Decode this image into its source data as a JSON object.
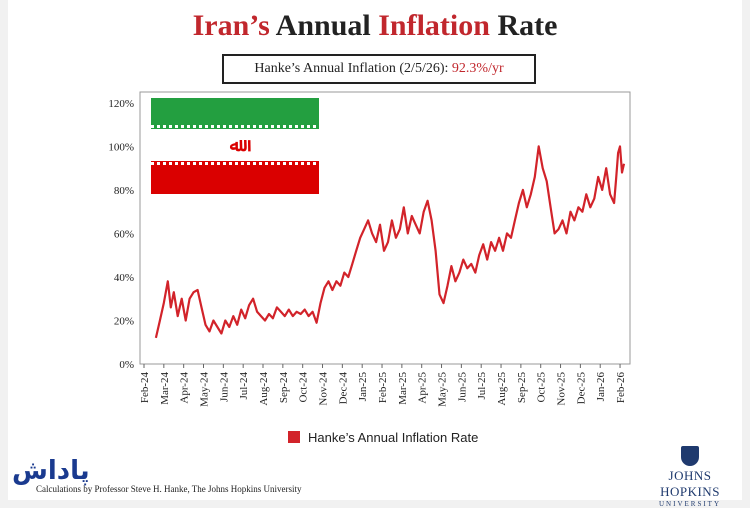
{
  "chart_data": {
    "type": "line",
    "title_parts": [
      {
        "text": "Iran’s",
        "color": "#c1272d"
      },
      {
        "text": "Annual",
        "color": "#222222"
      },
      {
        "text": "Inflation",
        "color": "#c1272d"
      },
      {
        "text": "Rate",
        "color": "#222222"
      }
    ],
    "subtitle_label": "Hanke’s Annual Inflation (2/5/26):",
    "subtitle_value": "92.3%/yr",
    "y_ticks": [
      "0%",
      "20%",
      "40%",
      "60%",
      "80%",
      "100%",
      "120%"
    ],
    "ylim": [
      0,
      125
    ],
    "x_ticks": [
      "Feb-24",
      "Mar-24",
      "Apr-24",
      "May-24",
      "Jun-24",
      "Jul-24",
      "Aug-24",
      "Sep-24",
      "Oct-24",
      "Nov-24",
      "Dec-24",
      "Jan-25",
      "Feb-25",
      "Mar-25",
      "Apr-25",
      "May-25",
      "Jun-25",
      "Jul-25",
      "Aug-25",
      "Sep-25",
      "Oct-25",
      "Nov-25",
      "Dec-25",
      "Jan-26",
      "Feb-26"
    ],
    "xlim": [
      0,
      24.3
    ],
    "series": [
      {
        "name": "Hanke’s Annual Inflation Rate",
        "color": "#d2232a",
        "points": [
          [
            0.6,
            12
          ],
          [
            0.8,
            20
          ],
          [
            1.0,
            28
          ],
          [
            1.2,
            38
          ],
          [
            1.35,
            26
          ],
          [
            1.5,
            33
          ],
          [
            1.7,
            22
          ],
          [
            1.9,
            30
          ],
          [
            2.1,
            20
          ],
          [
            2.3,
            30
          ],
          [
            2.5,
            33
          ],
          [
            2.7,
            34
          ],
          [
            2.9,
            26
          ],
          [
            3.1,
            18
          ],
          [
            3.3,
            15
          ],
          [
            3.5,
            20
          ],
          [
            3.7,
            17
          ],
          [
            3.9,
            14
          ],
          [
            4.1,
            20
          ],
          [
            4.3,
            17
          ],
          [
            4.5,
            22
          ],
          [
            4.7,
            18
          ],
          [
            4.9,
            25
          ],
          [
            5.1,
            21
          ],
          [
            5.3,
            27
          ],
          [
            5.5,
            30
          ],
          [
            5.7,
            24
          ],
          [
            5.9,
            22
          ],
          [
            6.1,
            20
          ],
          [
            6.3,
            23
          ],
          [
            6.5,
            21
          ],
          [
            6.7,
            26
          ],
          [
            6.9,
            24
          ],
          [
            7.1,
            22
          ],
          [
            7.3,
            25
          ],
          [
            7.5,
            22
          ],
          [
            7.7,
            24
          ],
          [
            7.9,
            23
          ],
          [
            8.1,
            25
          ],
          [
            8.3,
            22
          ],
          [
            8.5,
            24
          ],
          [
            8.7,
            19
          ],
          [
            8.9,
            28
          ],
          [
            9.1,
            35
          ],
          [
            9.3,
            38
          ],
          [
            9.5,
            34
          ],
          [
            9.7,
            38
          ],
          [
            9.9,
            36
          ],
          [
            10.1,
            42
          ],
          [
            10.3,
            40
          ],
          [
            10.5,
            46
          ],
          [
            10.7,
            52
          ],
          [
            10.9,
            58
          ],
          [
            11.1,
            62
          ],
          [
            11.3,
            66
          ],
          [
            11.5,
            60
          ],
          [
            11.7,
            56
          ],
          [
            11.9,
            64
          ],
          [
            12.1,
            52
          ],
          [
            12.3,
            56
          ],
          [
            12.5,
            66
          ],
          [
            12.7,
            58
          ],
          [
            12.9,
            62
          ],
          [
            13.1,
            72
          ],
          [
            13.3,
            60
          ],
          [
            13.5,
            68
          ],
          [
            13.7,
            64
          ],
          [
            13.9,
            60
          ],
          [
            14.1,
            70
          ],
          [
            14.3,
            75
          ],
          [
            14.5,
            66
          ],
          [
            14.7,
            52
          ],
          [
            14.9,
            32
          ],
          [
            15.1,
            28
          ],
          [
            15.3,
            36
          ],
          [
            15.5,
            45
          ],
          [
            15.7,
            38
          ],
          [
            15.9,
            42
          ],
          [
            16.1,
            48
          ],
          [
            16.3,
            44
          ],
          [
            16.5,
            46
          ],
          [
            16.7,
            42
          ],
          [
            16.9,
            50
          ],
          [
            17.1,
            55
          ],
          [
            17.3,
            48
          ],
          [
            17.5,
            56
          ],
          [
            17.7,
            52
          ],
          [
            17.9,
            58
          ],
          [
            18.1,
            52
          ],
          [
            18.3,
            60
          ],
          [
            18.5,
            58
          ],
          [
            18.7,
            66
          ],
          [
            18.9,
            74
          ],
          [
            19.1,
            80
          ],
          [
            19.3,
            72
          ],
          [
            19.5,
            78
          ],
          [
            19.7,
            86
          ],
          [
            19.9,
            100
          ],
          [
            20.1,
            90
          ],
          [
            20.3,
            84
          ],
          [
            20.5,
            72
          ],
          [
            20.7,
            60
          ],
          [
            20.9,
            62
          ],
          [
            21.1,
            66
          ],
          [
            21.3,
            60
          ],
          [
            21.5,
            70
          ],
          [
            21.7,
            66
          ],
          [
            21.9,
            72
          ],
          [
            22.1,
            70
          ],
          [
            22.3,
            78
          ],
          [
            22.5,
            72
          ],
          [
            22.7,
            76
          ],
          [
            22.9,
            86
          ],
          [
            23.1,
            80
          ],
          [
            23.3,
            90
          ],
          [
            23.5,
            78
          ],
          [
            23.7,
            74
          ],
          [
            23.8,
            85
          ],
          [
            23.9,
            97
          ],
          [
            24.0,
            100
          ],
          [
            24.1,
            88
          ],
          [
            24.2,
            92
          ]
        ]
      }
    ],
    "legend_position": "bottom-center",
    "grid": false
  },
  "footer": "Calculations by Professor Steve H. Hanke, The Johns Hopkins University",
  "logo": {
    "name": "JOHNS HOPKINS",
    "sub": "UNIVERSITY"
  },
  "watermark": "پاداش",
  "flag_icon": "iran-flag-icon",
  "shield_icon": "jhu-shield-icon"
}
